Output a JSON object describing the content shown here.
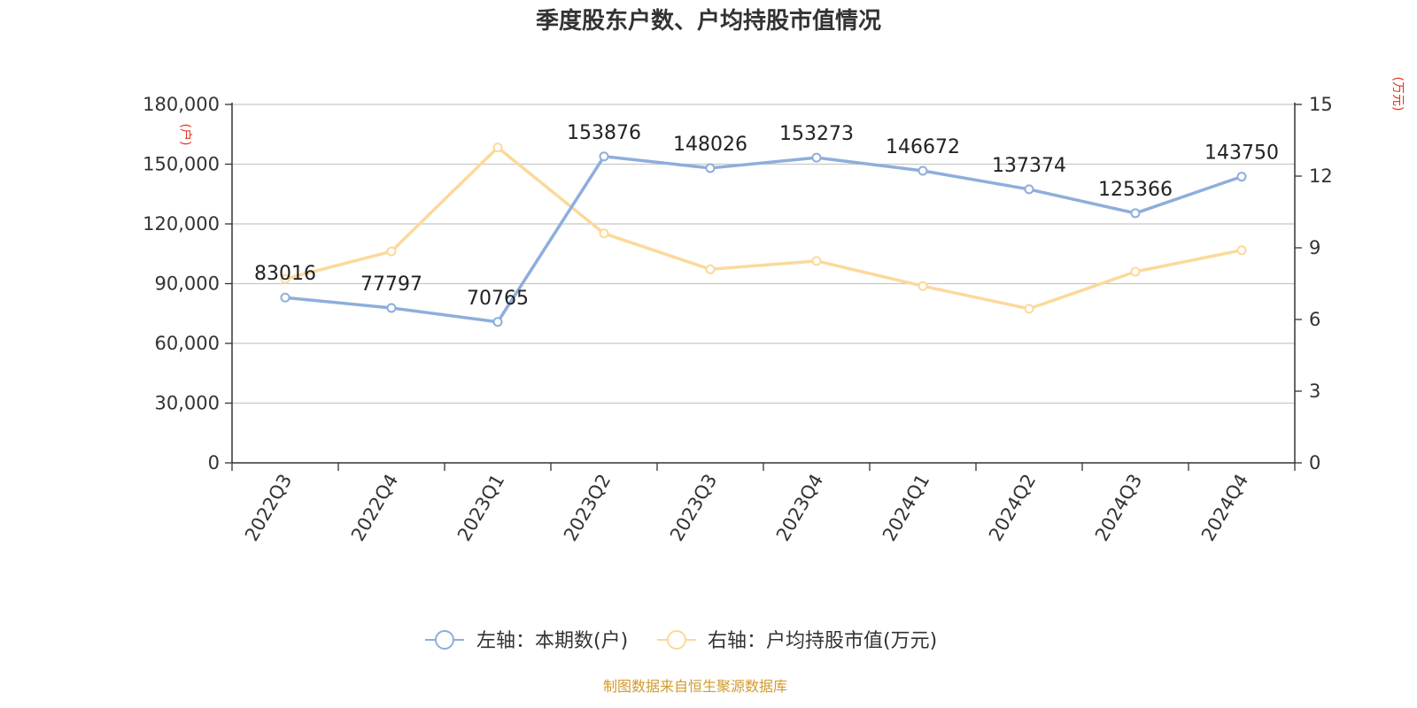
{
  "colors": {
    "left_series": "#8eaedb",
    "right_series": "#fcd99a",
    "unit_label": "#e8311f",
    "source": "#d29a2c",
    "grid": "#c8c8c8",
    "axis": "#333333"
  },
  "chart_data": {
    "type": "line",
    "title": "季度股东户数、户均持股市值情况",
    "categories": [
      "2022Q3",
      "2022Q4",
      "2023Q1",
      "2023Q2",
      "2023Q3",
      "2023Q4",
      "2024Q1",
      "2024Q2",
      "2024Q3",
      "2024Q4"
    ],
    "y_left": {
      "unit": "(户)",
      "range": [
        0,
        180000
      ],
      "ticks": [
        "180,000",
        "150,000",
        "120,000",
        "90,000",
        "60,000",
        "30,000",
        "0"
      ],
      "tick_values": [
        180000,
        150000,
        120000,
        90000,
        60000,
        30000,
        0
      ]
    },
    "y_right": {
      "unit": "(万元)",
      "range": [
        0,
        15
      ],
      "ticks": [
        "15",
        "12",
        "9",
        "6",
        "3",
        "0"
      ],
      "tick_values": [
        15,
        12,
        9,
        6,
        3,
        0
      ]
    },
    "grid": true,
    "legend_position": "bottom",
    "series": [
      {
        "name": "左轴：本期数(户)",
        "axis": "left",
        "values": [
          83016,
          77797,
          70765,
          153876,
          148026,
          153273,
          146672,
          137374,
          125366,
          143750
        ],
        "labels": [
          "83016",
          "77797",
          "70765",
          "153876",
          "148026",
          "153273",
          "146672",
          "137374",
          "125366",
          "143750"
        ]
      },
      {
        "name": "右轴：户均持股市值(万元)",
        "axis": "right",
        "values": [
          7.7,
          8.85,
          13.2,
          9.6,
          8.1,
          8.45,
          7.4,
          6.45,
          8.0,
          8.9
        ]
      }
    ],
    "source": "制图数据来自恒生聚源数据库"
  }
}
